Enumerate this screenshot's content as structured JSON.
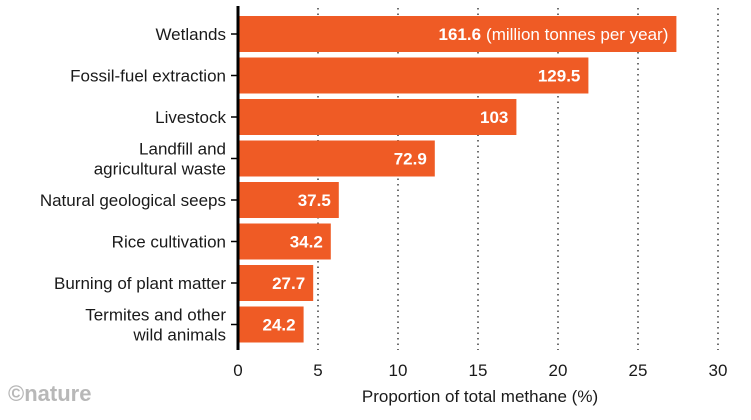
{
  "chart_data": {
    "type": "bar",
    "orientation": "horizontal",
    "categories": [
      [
        "Wetlands"
      ],
      [
        "Fossil-fuel extraction"
      ],
      [
        "Livestock"
      ],
      [
        "Landfill and",
        "agricultural waste"
      ],
      [
        "Natural geological seeps"
      ],
      [
        "Rice cultivation"
      ],
      [
        "Burning of plant matter"
      ],
      [
        "Termites and other",
        "wild animals"
      ]
    ],
    "proportion_percent": [
      27.4,
      21.9,
      17.4,
      12.3,
      6.3,
      5.8,
      4.7,
      4.1
    ],
    "value_labels": [
      "161.6",
      "129.5",
      "103",
      "72.9",
      "37.5",
      "34.2",
      "27.7",
      "24.2"
    ],
    "value_unit_note": "(million tonnes per year)",
    "xlabel": "Proportion of total methane (%)",
    "xlim": [
      0,
      30
    ],
    "xticks": [
      0,
      5,
      10,
      15,
      20,
      25,
      30
    ],
    "grid": "vertical dotted",
    "colors": {
      "bar": "#ef5b25",
      "axis": "#000000",
      "grid": "#222222",
      "brand": "#b8b8b8"
    },
    "brand": "©nature"
  }
}
